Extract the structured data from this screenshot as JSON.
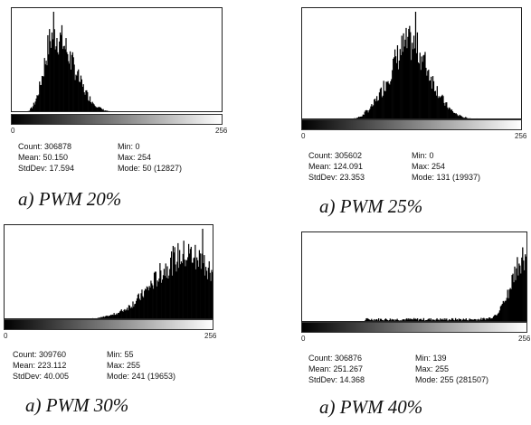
{
  "chart_data": [
    {
      "type": "histogram",
      "caption": "a) PWM 20%",
      "x_min_label": "0",
      "x_max_label": "256",
      "xlim": [
        0,
        256
      ],
      "grid": false,
      "stats": {
        "count": "Count: 306878",
        "mean": "Mean: 50.150",
        "stddev": "StdDev: 17.594",
        "min": "Min: 0",
        "max": "Max: 254",
        "mode": "Mode: 50 (12827)"
      },
      "mode_x": 50,
      "mode_count": 12827,
      "distribution": {
        "mean": 50.15,
        "stddev": 17.594,
        "skew": -0.35,
        "floor": 0.002
      }
    },
    {
      "type": "histogram",
      "caption": "a) PWM 25%",
      "x_min_label": "0",
      "x_max_label": "256",
      "xlim": [
        0,
        256
      ],
      "grid": false,
      "stats": {
        "count": "Count: 305602",
        "mean": "Mean: 124.091",
        "stddev": "StdDev: 23.353",
        "min": "Min: 0",
        "max": "Max: 254",
        "mode": "Mode: 131 (19937)"
      },
      "mode_x": 131,
      "mode_count": 19937,
      "distribution": {
        "mean": 124.091,
        "stddev": 23.353,
        "skew": 0,
        "floor": 0.015
      }
    },
    {
      "type": "histogram",
      "caption": "a) PWM 30%",
      "x_min_label": "0",
      "x_max_label": "256",
      "xlim": [
        0,
        256
      ],
      "grid": false,
      "stats": {
        "count": "Count: 309760",
        "mean": "Mean: 223.112",
        "stddev": "StdDev: 40.005",
        "min": "Min: 55",
        "max": "Max: 255",
        "mode": "Mode: 241 (19653)"
      },
      "mode_x": 241,
      "mode_count": 19653,
      "distribution": {
        "mean": 223.112,
        "stddev": 40.005,
        "skew": 0,
        "floor": 0.01
      }
    },
    {
      "type": "histogram",
      "caption": "a) PWM 40%",
      "x_min_label": "0",
      "x_max_label": "256",
      "xlim": [
        0,
        256
      ],
      "grid": false,
      "stats": {
        "count": "Count: 306876",
        "mean": "Mean: 251.267",
        "stddev": "StdDev: 14.368",
        "min": "Min: 139",
        "max": "Max: 255",
        "mode": "Mode: 255 (281507)"
      },
      "mode_x": 255,
      "mode_count": 281507,
      "distribution": {
        "mean": 251.267,
        "stddev": 14.368,
        "skew": 0,
        "floor": 0.05
      }
    }
  ]
}
